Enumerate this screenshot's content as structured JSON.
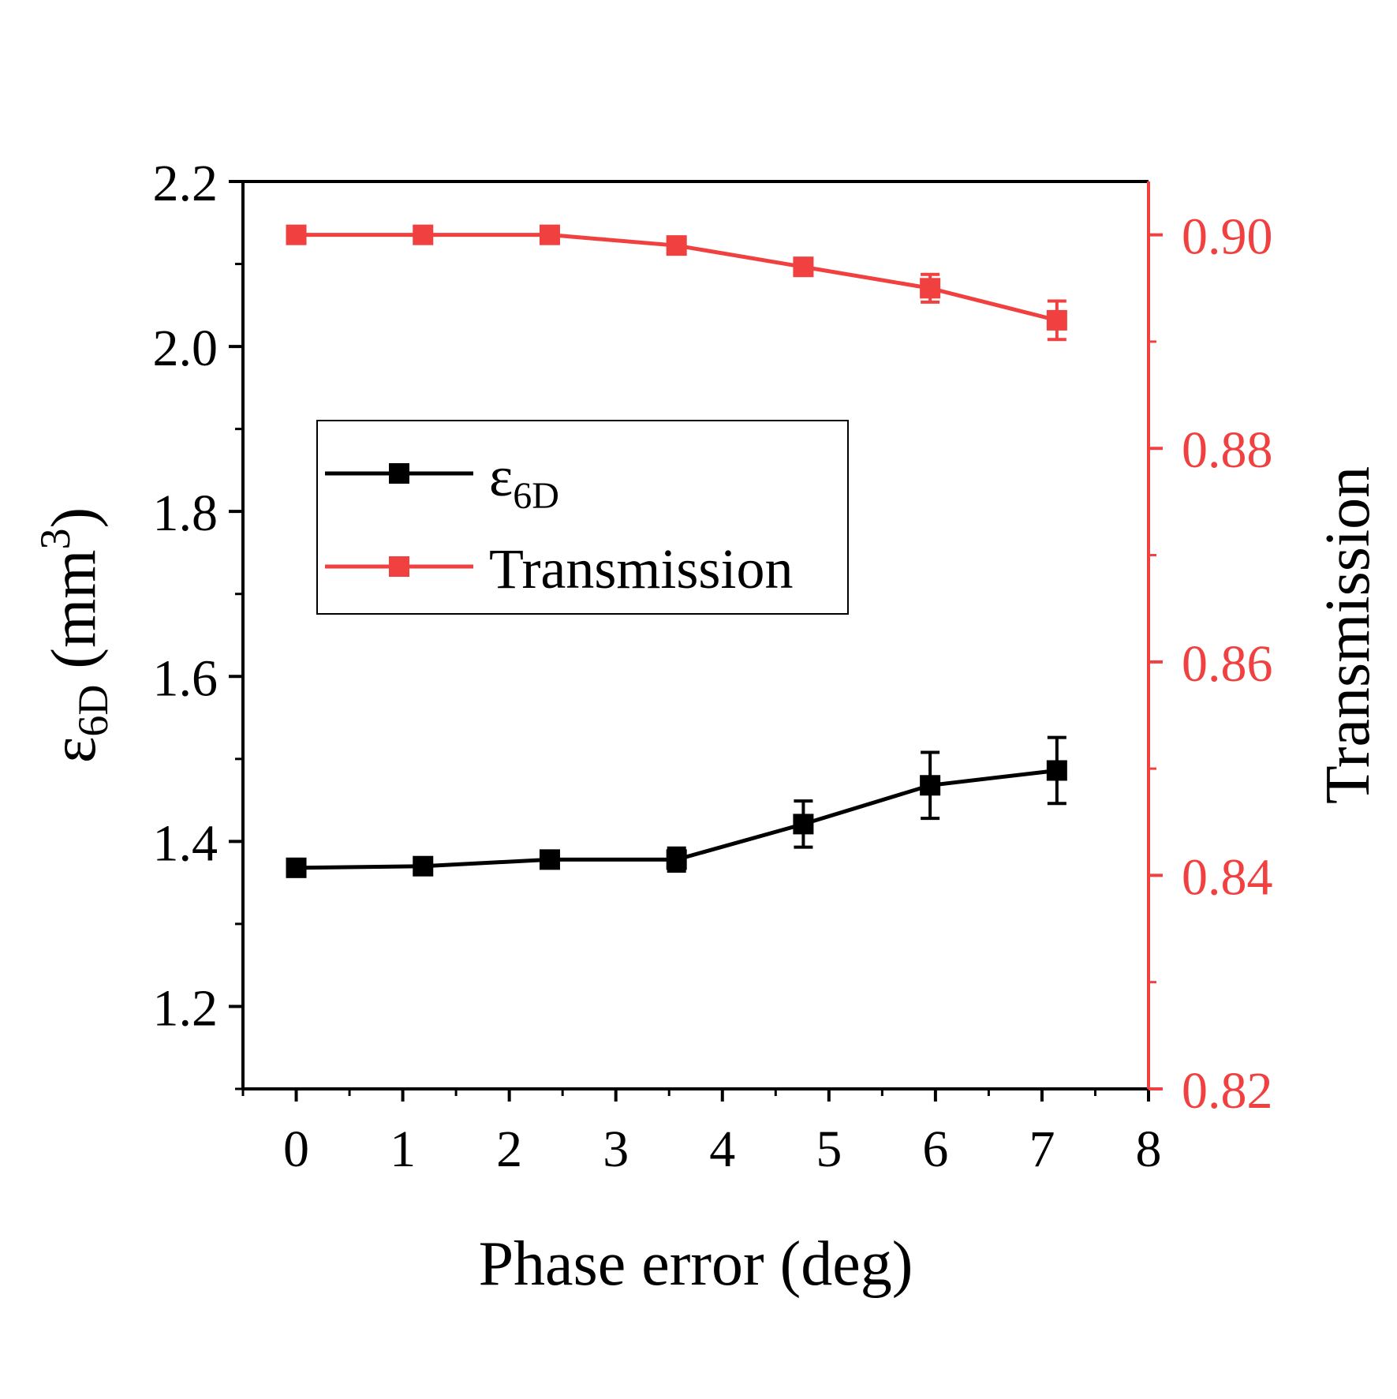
{
  "chart_data": {
    "type": "line",
    "title": "",
    "xlabel": "Phase error (deg)",
    "x_ticks": [
      "0",
      "1",
      "2",
      "3",
      "4",
      "5",
      "6",
      "7",
      "8"
    ],
    "xlim": [
      -0.5,
      8
    ],
    "left_axis": {
      "label_symbol": "ε",
      "label_sub": "6D",
      "label_unit": " (mm",
      "label_sup": "3",
      "label_close": ")",
      "ticks": [
        "1.2",
        "1.4",
        "1.6",
        "1.8",
        "2.0",
        "2.2"
      ],
      "ylim": [
        1.1,
        2.2
      ]
    },
    "right_axis": {
      "label": "Transmission",
      "ticks": [
        "0.82",
        "0.84",
        "0.86",
        "0.88",
        "0.90"
      ],
      "ylim": [
        0.82,
        0.905
      ],
      "color": "#f04040"
    },
    "series": [
      {
        "name": "ε6D",
        "legend_symbol": "ε",
        "legend_sub": "6D",
        "axis": "left",
        "color": "#000000",
        "x": [
          0,
          1.19,
          2.38,
          3.57,
          4.76,
          5.95,
          7.14
        ],
        "y": [
          1.368,
          1.37,
          1.378,
          1.378,
          1.421,
          1.468,
          1.486
        ],
        "err": [
          0.005,
          0.008,
          0.01,
          0.014,
          0.028,
          0.04,
          0.04
        ]
      },
      {
        "name": "Transmission",
        "legend_label": "Transmission",
        "axis": "right",
        "color": "#f04040",
        "x": [
          0,
          1.19,
          2.38,
          3.57,
          4.76,
          5.95,
          7.14
        ],
        "y": [
          0.9,
          0.9,
          0.9,
          0.899,
          0.897,
          0.895,
          0.892
        ],
        "err": [
          0.0004,
          0.0006,
          0.0006,
          0.0008,
          0.0008,
          0.0013,
          0.0018
        ]
      }
    ],
    "legend": {
      "placement": "upper-left"
    }
  }
}
